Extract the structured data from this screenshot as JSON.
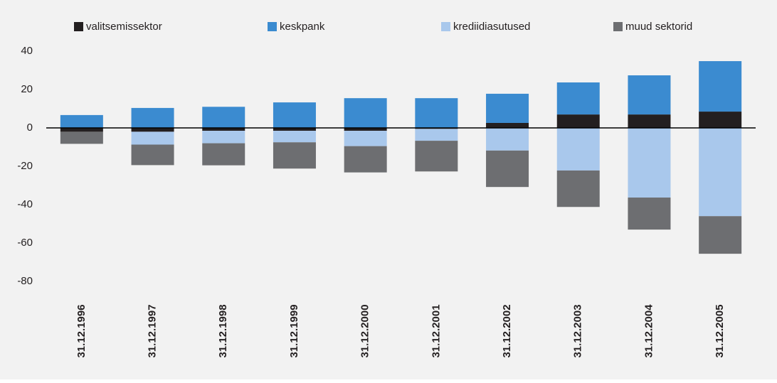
{
  "chart_data": {
    "type": "stacked_bar",
    "categories": [
      "31.12.1996",
      "31.12.1997",
      "31.12.1998",
      "31.12.1999",
      "31.12.2000",
      "31.12.2001",
      "31.12.2002",
      "31.12.2003",
      "31.12.2004",
      "31.12.2005"
    ],
    "series": [
      {
        "name": "valitsemissektor",
        "color": "#231f20",
        "values": [
          -2,
          -2,
          -1.5,
          -1.5,
          -1.5,
          -0.5,
          2.6,
          7,
          7,
          8.5
        ]
      },
      {
        "name": "keskpank",
        "color": "#3b8bd0",
        "values": [
          6.7,
          10.4,
          11,
          13.3,
          15.5,
          15.5,
          15.2,
          16.7,
          20.4,
          26.3
        ]
      },
      {
        "name": "krediidiasutused",
        "color": "#a9c8ec",
        "values": [
          0,
          -6.7,
          -6.5,
          -6,
          -8,
          -6.2,
          -11.8,
          -22.2,
          -36.3,
          -46
        ]
      },
      {
        "name": "muud sektorid",
        "color": "#6d6e71",
        "values": [
          -6.3,
          -10.7,
          -11.5,
          -13.7,
          -13.7,
          -16,
          -19,
          -19,
          -16.7,
          -19.6
        ]
      }
    ],
    "ylim": [
      -80,
      40
    ],
    "yticks": [
      40,
      20,
      0,
      -20,
      -40,
      -60,
      -80
    ],
    "grid": false,
    "legend": "top"
  }
}
